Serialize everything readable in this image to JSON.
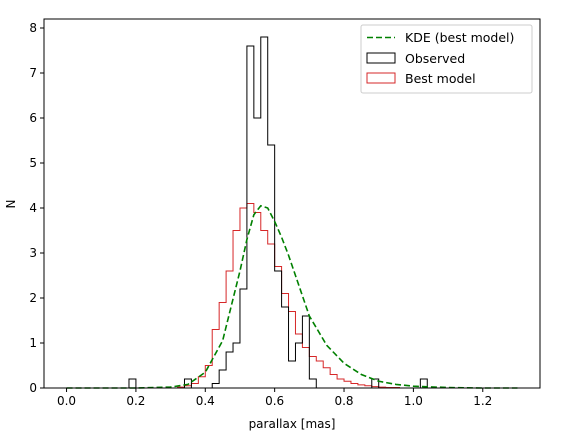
{
  "chart_data": {
    "type": "histogram",
    "xlabel": "parallax [mas]",
    "ylabel": "N",
    "xlim": [
      -0.065,
      1.365
    ],
    "ylim": [
      0,
      8.2
    ],
    "x_ticks": [
      0.0,
      0.2,
      0.4,
      0.6,
      0.8,
      1.0,
      1.2
    ],
    "x_tick_labels": [
      "0.0",
      "0.2",
      "0.4",
      "0.6",
      "0.8",
      "1.0",
      "1.2"
    ],
    "y_ticks": [
      0,
      1,
      2,
      3,
      4,
      5,
      6,
      7,
      8
    ],
    "y_tick_labels": [
      "0",
      "1",
      "2",
      "3",
      "4",
      "5",
      "6",
      "7",
      "8"
    ],
    "grid": false,
    "legend_position": "upper right",
    "series": [
      {
        "name": "KDE (best model)",
        "kind": "line",
        "style": "dashed",
        "color": "#008000",
        "x": [
          0.0,
          0.1,
          0.2,
          0.3,
          0.35,
          0.4,
          0.45,
          0.5,
          0.52,
          0.54,
          0.56,
          0.58,
          0.6,
          0.62,
          0.64,
          0.66,
          0.7,
          0.75,
          0.8,
          0.85,
          0.9,
          0.95,
          1.0,
          1.1,
          1.2,
          1.3
        ],
        "y": [
          0.0,
          0.0,
          0.0,
          0.02,
          0.08,
          0.35,
          1.05,
          2.6,
          3.3,
          3.85,
          4.05,
          4.0,
          3.7,
          3.35,
          2.95,
          2.5,
          1.6,
          0.95,
          0.55,
          0.3,
          0.15,
          0.08,
          0.04,
          0.01,
          0.0,
          0.0
        ]
      },
      {
        "name": "Observed",
        "kind": "step",
        "color": "#000000",
        "bin_start": 0.0,
        "bin_width": 0.02,
        "values": [
          0,
          0,
          0,
          0,
          0,
          0,
          0,
          0,
          0,
          0.2,
          0,
          0,
          0,
          0,
          0,
          0,
          0,
          0.2,
          0,
          0,
          0,
          0.1,
          0.4,
          0.8,
          1.0,
          2.2,
          7.6,
          6.0,
          7.8,
          5.4,
          2.6,
          1.8,
          0.6,
          1.0,
          1.6,
          0.2,
          0,
          0,
          0,
          0,
          0,
          0,
          0,
          0,
          0.2,
          0,
          0,
          0,
          0,
          0,
          0,
          0.2,
          0,
          0,
          0,
          0,
          0,
          0,
          0,
          0,
          0,
          0,
          0,
          0,
          0
        ]
      },
      {
        "name": "Best model",
        "kind": "step",
        "color": "#d62728",
        "bin_start": 0.0,
        "bin_width": 0.02,
        "values": [
          0,
          0,
          0,
          0,
          0,
          0,
          0,
          0,
          0,
          0,
          0,
          0,
          0,
          0,
          0,
          0,
          0.02,
          0.05,
          0.1,
          0.25,
          0.5,
          1.3,
          1.9,
          2.6,
          3.5,
          4.0,
          4.1,
          3.9,
          3.5,
          3.2,
          2.7,
          2.1,
          1.7,
          1.2,
          0.9,
          0.7,
          0.6,
          0.45,
          0.3,
          0.2,
          0.15,
          0.1,
          0.07,
          0.05,
          0.03,
          0.02,
          0.01,
          0.01,
          0,
          0,
          0,
          0,
          0,
          0,
          0,
          0,
          0,
          0,
          0,
          0,
          0,
          0,
          0,
          0,
          0
        ]
      }
    ]
  }
}
